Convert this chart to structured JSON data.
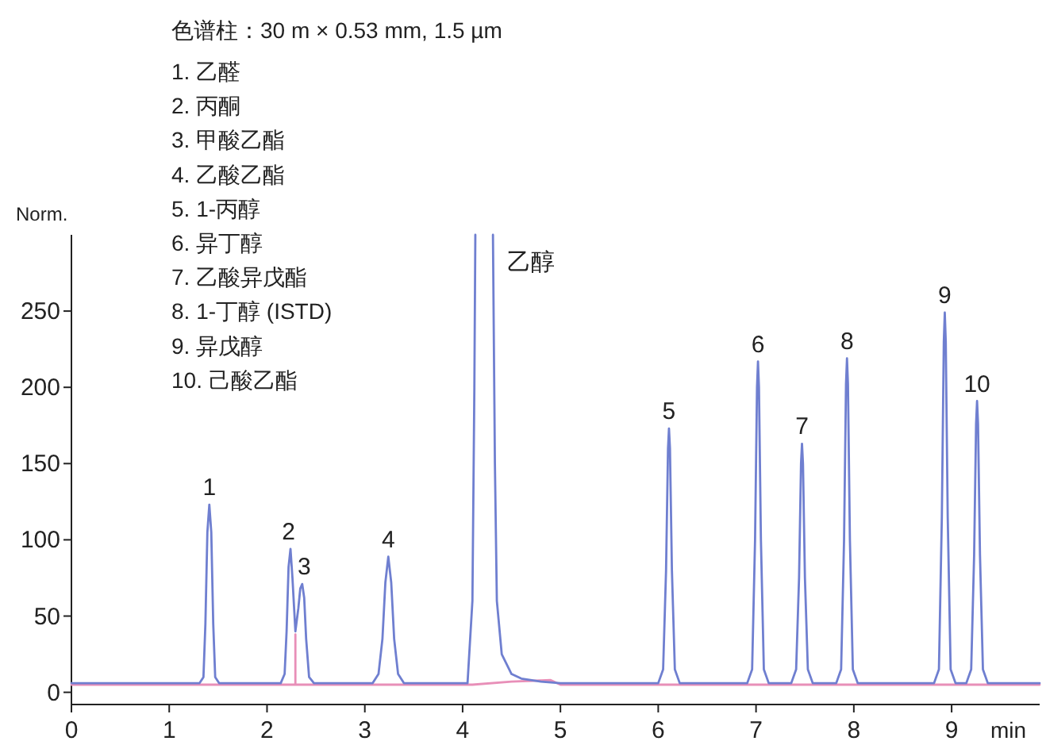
{
  "chart_data": {
    "type": "line",
    "title": "色谱柱：30 m × 0.53 mm, 1.5 µm",
    "xlabel": "min",
    "ylabel": "Norm.",
    "xlim": [
      0,
      9.9
    ],
    "ylim": [
      -8,
      300
    ],
    "xticks": [
      0,
      1,
      2,
      3,
      4,
      5,
      6,
      7,
      8,
      9
    ],
    "yticks": [
      0,
      50,
      100,
      150,
      200,
      250
    ],
    "grid": false,
    "series": [
      {
        "color": "#e88fb8",
        "x": [
          0,
          2.29,
          2.29,
          2.29,
          4.1,
          4.5,
          4.9,
          5.0,
          9.9
        ],
        "values": [
          5,
          5,
          38,
          5,
          5,
          7,
          8,
          5,
          5
        ]
      },
      {
        "color": "#6f7fd0",
        "x": [
          0,
          0.9,
          1.31,
          1.35,
          1.37,
          1.39,
          1.41,
          1.43,
          1.45,
          1.47,
          1.51,
          2.14,
          2.18,
          2.2,
          2.22,
          2.24,
          2.26,
          2.29,
          2.32,
          2.34,
          2.36,
          2.38,
          2.4,
          2.43,
          2.48,
          3.08,
          3.14,
          3.18,
          3.21,
          3.24,
          3.27,
          3.3,
          3.34,
          3.4,
          4.05,
          4.1,
          4.12,
          4.13
        ],
        "values": [
          6,
          6,
          6,
          10,
          45,
          105,
          123,
          105,
          45,
          10,
          6,
          6,
          12,
          40,
          82,
          94,
          75,
          40,
          55,
          68,
          71,
          62,
          35,
          10,
          6,
          6,
          12,
          35,
          72,
          89,
          72,
          35,
          12,
          6,
          6,
          60,
          200,
          300
        ]
      },
      {
        "color": "#6f7fd0",
        "x": [
          4.31,
          4.33,
          4.35,
          4.4,
          4.5,
          4.6,
          4.8,
          5,
          6,
          6.05,
          6.08,
          6.1,
          6.11,
          6.12,
          6.14,
          6.17,
          6.22,
          6.91,
          6.96,
          6.99,
          7.01,
          7.02,
          7.03,
          7.05,
          7.08,
          7.13,
          7.36,
          7.41,
          7.44,
          7.46,
          7.47,
          7.48,
          7.5,
          7.53,
          7.58,
          7.82,
          7.87,
          7.9,
          7.92,
          7.93,
          7.94,
          7.96,
          7.99,
          8.04,
          8.82,
          8.87,
          8.9,
          8.92,
          8.93,
          8.94,
          8.96,
          8.99,
          9.04,
          9.15,
          9.2,
          9.23,
          9.25,
          9.26,
          9.27,
          9.29,
          9.32,
          9.37,
          9.9
        ],
        "values": [
          300,
          150,
          60,
          25,
          12,
          9,
          7,
          6,
          6,
          15,
          80,
          160,
          173,
          160,
          80,
          15,
          6,
          6,
          15,
          100,
          200,
          217,
          200,
          100,
          15,
          6,
          6,
          15,
          75,
          150,
          163,
          150,
          75,
          15,
          6,
          6,
          15,
          100,
          202,
          219,
          202,
          100,
          15,
          6,
          6,
          15,
          115,
          230,
          249,
          230,
          115,
          15,
          6,
          6,
          15,
          90,
          176,
          191,
          176,
          90,
          15,
          6,
          6
        ]
      }
    ],
    "annotations": [
      {
        "text": "1",
        "x": 1.41,
        "y": 123
      },
      {
        "text": "2",
        "x": 2.22,
        "y": 94
      },
      {
        "text": "3",
        "x": 2.38,
        "y": 71
      },
      {
        "text": "4",
        "x": 3.24,
        "y": 89
      },
      {
        "text": "乙醇",
        "x": 4.31,
        "y": 300
      },
      {
        "text": "5",
        "x": 6.11,
        "y": 173
      },
      {
        "text": "6",
        "x": 7.02,
        "y": 217
      },
      {
        "text": "7",
        "x": 7.47,
        "y": 163
      },
      {
        "text": "8",
        "x": 7.93,
        "y": 219
      },
      {
        "text": "9",
        "x": 8.93,
        "y": 249
      },
      {
        "text": "10",
        "x": 9.26,
        "y": 191
      },
      "1. 乙醛",
      "2. 丙酮",
      "3. 甲酸乙酯",
      "4. 乙酸乙酯",
      "5. 1-丙醇",
      "6. 异丁醇",
      "7. 乙酸异戊酯",
      "8. 1-丁醇 (ISTD)",
      "9. 异戊醇",
      "10. 己酸乙酯"
    ]
  }
}
